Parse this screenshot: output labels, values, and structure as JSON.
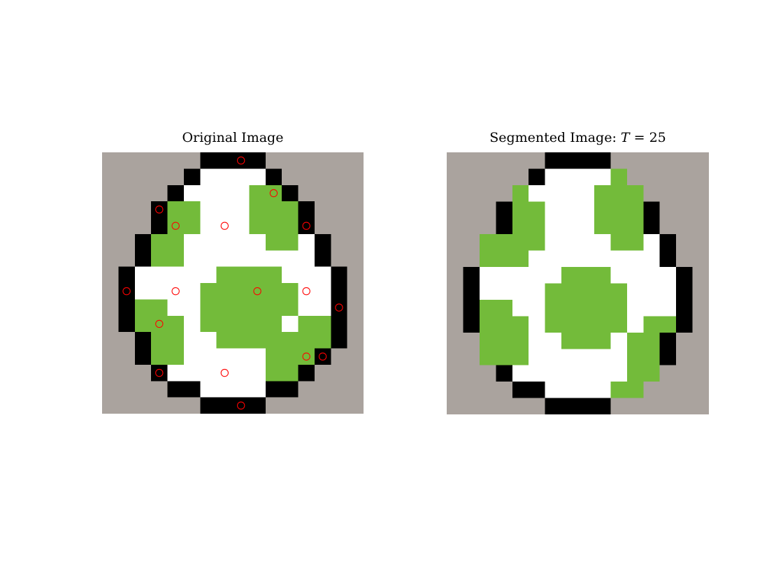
{
  "figure": {
    "left_title": "Original Image",
    "right_title_prefix": "Segmented Image: ",
    "right_title_var": "T",
    "right_title_suffix": " = 25"
  },
  "palette": {
    "G": "#aaa39e",
    "B": "#000000",
    "W": "#ffffff",
    "N": "#73bb3a",
    "seed": "#ff0000"
  },
  "grids": {
    "original": [
      "GGGGGGBBBBGGGGGG",
      "GGGGGBWWWWBGGGGG",
      "GGGGBWWWWNNBGGGG",
      "GGGBNNWWWNNNBGGG",
      "GGGBNNWWWNNNBGGG",
      "GGBNNWWWWWNNWBGG",
      "GGBNNWWWWWWWWBGG",
      "GBWWWWWNNNNWWWBG",
      "GBWWWWNNNNNNWWBG",
      "GBNNWWNNNNNNWWBG",
      "GBNNNWNNNNNWNNBG",
      "GGBNNWWNNNNNNNBG",
      "GGBNNWWWWWNNNBGG",
      "GGGBWWWWWWNNBGGG",
      "GGGGBBWWWWBBGGGG",
      "GGGGGGBBBBGGGGGG"
    ],
    "segmented": [
      "GGGGGGBBBBGGGGGG",
      "GGGGGBWWWWNGGGGG",
      "GGGGNWWWWNNNGGGG",
      "GGGBNNWWWNNNBGGG",
      "GGGBNNWWWNNNBGGG",
      "GGNNNNWWWWNNWBGG",
      "GGNNNWWWWWWWWBGG",
      "GBWWWWWNNNWWWWBG",
      "GBWWWWNNNNNWWWBG",
      "GBNNWWNNNNNWWWBG",
      "GBNNNWNNNNNWNNBG",
      "GGNNNWWNNNWNNBGG",
      "GGNNNWWWWWWNNBGG",
      "GGGBWWWWWWWNNGGG",
      "GGGGBBWWWWNNGGGG",
      "GGGGGGBBBBGGGGGG"
    ]
  },
  "seeds": [
    {
      "row": 0,
      "col": 8
    },
    {
      "row": 2,
      "col": 10
    },
    {
      "row": 3,
      "col": 3
    },
    {
      "row": 4,
      "col": 4
    },
    {
      "row": 4,
      "col": 7
    },
    {
      "row": 4,
      "col": 12
    },
    {
      "row": 8,
      "col": 1
    },
    {
      "row": 8,
      "col": 4
    },
    {
      "row": 8,
      "col": 9
    },
    {
      "row": 8,
      "col": 12
    },
    {
      "row": 9,
      "col": 14
    },
    {
      "row": 10,
      "col": 3
    },
    {
      "row": 12,
      "col": 12
    },
    {
      "row": 12,
      "col": 13
    },
    {
      "row": 13,
      "col": 3
    },
    {
      "row": 13,
      "col": 7
    },
    {
      "row": 15,
      "col": 8
    }
  ]
}
